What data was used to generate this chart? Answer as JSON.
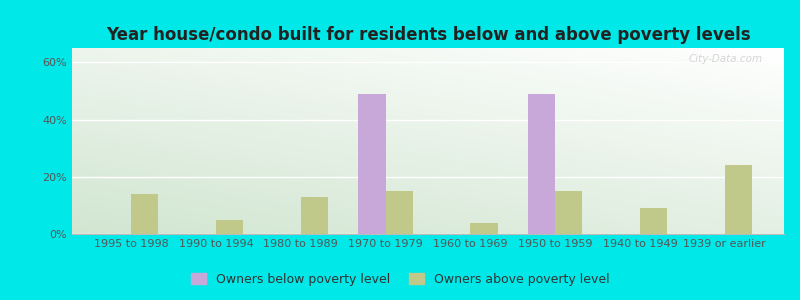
{
  "title": "Year house/condo built for residents below and above poverty levels",
  "categories": [
    "1995 to 1998",
    "1990 to 1994",
    "1980 to 1989",
    "1970 to 1979",
    "1960 to 1969",
    "1950 to 1959",
    "1940 to 1949",
    "1939 or earlier"
  ],
  "below_poverty": [
    0,
    0,
    0,
    49,
    0,
    49,
    0,
    0
  ],
  "above_poverty": [
    14,
    5,
    13,
    15,
    4,
    15,
    9,
    24
  ],
  "below_color": "#c8a8d8",
  "above_color": "#c0c98a",
  "bar_width": 0.32,
  "ylim": [
    0,
    65
  ],
  "yticks": [
    0,
    20,
    40,
    60
  ],
  "ytick_labels": [
    "0%",
    "20%",
    "40%",
    "60%"
  ],
  "legend_below": "Owners below poverty level",
  "legend_above": "Owners above poverty level",
  "outer_bg": "#00e8e8",
  "watermark": "City-Data.com",
  "title_fontsize": 12,
  "tick_fontsize": 8,
  "legend_fontsize": 9
}
